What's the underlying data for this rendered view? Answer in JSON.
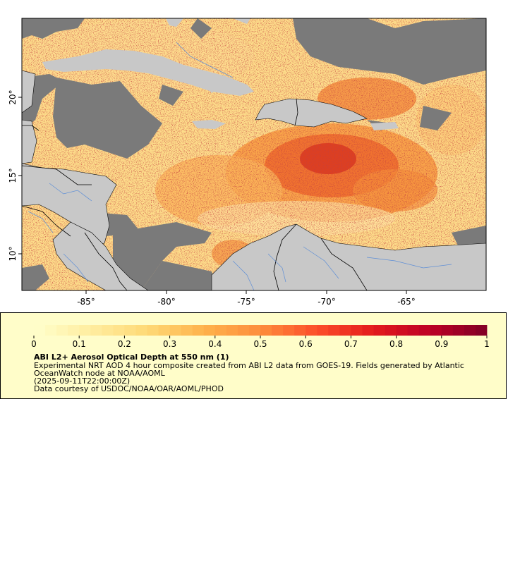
{
  "map": {
    "x_axis_labels": [
      "-85°",
      "-80°",
      "-75°",
      "-70°",
      "-65°"
    ],
    "y_axis_labels": [
      "20°",
      "15°",
      "10°"
    ],
    "colors": {
      "no_data_land": "#7a7a7a",
      "land_mask": "#c8c8c8",
      "boundaries": "#000000",
      "rivers": "#5f8fd6"
    }
  },
  "legend": {
    "colorbar_ticks": [
      "0",
      "0.1",
      "0.2",
      "0.3",
      "0.4",
      "0.5",
      "0.6",
      "0.7",
      "0.8",
      "0.9",
      "1"
    ],
    "colorbar_range": [
      0,
      1
    ],
    "colormap": "YlOrRd",
    "title": "ABI L2+ Aerosol Optical Depth at 550 nm (1)",
    "description_line1": "Experimental NRT AOD 4 hour composite created from ABI L2 data from GOES-19. Fields generated by Atlantic",
    "description_line2": "OceanWatch node at NOAA/AOML",
    "time": "(2025-09-11T22:00:00Z)",
    "credit": "Data courtesy of USDOC/NOAA/OAR/AOML/PHOD"
  }
}
